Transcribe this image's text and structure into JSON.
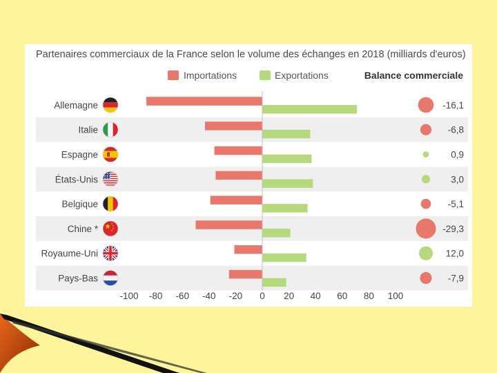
{
  "chart_data": {
    "type": "bar",
    "title": "Partenaires commerciaux de la France selon le volume des échanges en 2018 (milliards d'euros)",
    "categories": [
      "Allemagne",
      "Italie",
      "Espagne",
      "États-Unis",
      "Belgique",
      "Chine *",
      "Royaume-Uni",
      "Pays-Bas"
    ],
    "series": [
      {
        "name": "Importations",
        "color": "#e8776c",
        "values": [
          -87,
          -43,
          -36,
          -35,
          -39,
          -50,
          -21,
          -25
        ]
      },
      {
        "name": "Exportations",
        "color": "#b7d97e",
        "values": [
          71,
          36,
          37,
          38,
          34,
          21,
          33,
          18
        ]
      }
    ],
    "balance": {
      "label": "Balance commerciale",
      "values": [
        -16.1,
        -6.8,
        0.9,
        3.0,
        -5.1,
        -29.3,
        12.0,
        -7.9
      ],
      "labels": [
        "-16,1",
        "-6,8",
        "0,9",
        "3,0",
        "-5,1",
        "-29,3",
        "12,0",
        "-7,9"
      ],
      "negative_color": "#e8776c",
      "positive_color": "#b7d97e"
    },
    "flags": [
      "flag-germany",
      "flag-italy",
      "flag-spain",
      "flag-usa",
      "flag-belgium",
      "flag-china",
      "flag-uk",
      "flag-netherlands"
    ],
    "xlim": [
      -100,
      100
    ],
    "xticks": [
      -100,
      -80,
      -60,
      -40,
      -20,
      0,
      20,
      40,
      60,
      80,
      100
    ],
    "legend_position": "top",
    "grid": false
  }
}
